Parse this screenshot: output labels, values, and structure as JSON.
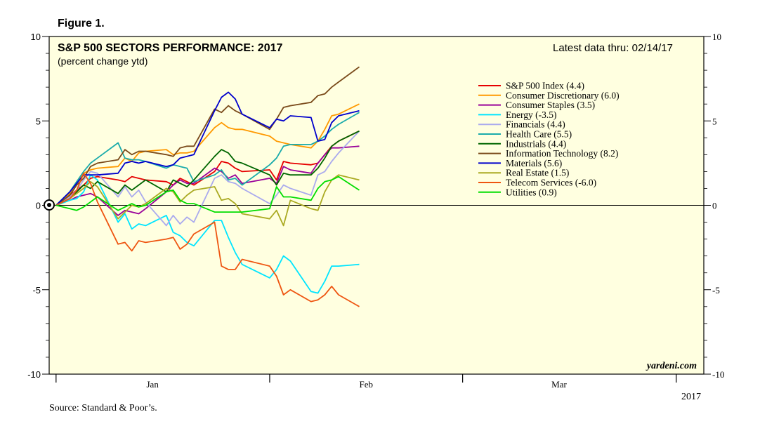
{
  "figure_label": "Figure 1.",
  "source": "Source: Standard & Poor’s.",
  "watermark": "yardeni.com",
  "chart_data": {
    "type": "line",
    "title": "S&P 500 SECTORS PERFORMANCE: 2017",
    "subtitle": "(percent change ytd)",
    "note": "Latest data thru: 02/14/17",
    "xlabel": "",
    "ylabel": "",
    "ylim": [
      -10,
      10
    ],
    "yticks": [
      -10,
      -5,
      0,
      5,
      10
    ],
    "ytick_labels_left": [
      "-10",
      "-5",
      "0",
      "5",
      "10"
    ],
    "ytick_labels_right": [
      "-10",
      "-5",
      "0",
      "5",
      "10"
    ],
    "xlim": [
      -1,
      94
    ],
    "xticks": [
      {
        "label": "Jan",
        "x": 14
      },
      {
        "label": "Feb",
        "x": 45
      },
      {
        "label": "Mar",
        "x": 73
      }
    ],
    "year_label": "2017",
    "background_color": "#ffffe0",
    "grid": false,
    "legend_position": "top-right",
    "x": [
      0,
      2,
      3,
      4,
      5,
      6,
      9,
      10,
      11,
      12,
      13,
      16,
      17,
      18,
      19,
      20,
      23,
      24,
      25,
      26,
      27,
      31,
      32,
      33,
      34,
      37,
      38,
      39,
      40,
      41,
      44
    ],
    "series": [
      {
        "name": "S&P 500 Index (4.4)",
        "color": "#e60000",
        "values": [
          0.0,
          0.6,
          0.9,
          1.2,
          1.6,
          1.7,
          1.5,
          1.4,
          1.7,
          1.6,
          1.5,
          1.4,
          1.2,
          1.6,
          1.4,
          1.2,
          2.0,
          2.6,
          2.5,
          2.2,
          2.0,
          2.1,
          1.5,
          2.6,
          2.5,
          2.4,
          2.5,
          3.0,
          3.5,
          3.8,
          4.4
        ]
      },
      {
        "name": "Consumer Discretionary (6.0)",
        "color": "#ff9900",
        "values": [
          0.0,
          0.7,
          1.4,
          1.9,
          2.1,
          2.2,
          2.3,
          2.8,
          2.6,
          3.1,
          3.2,
          3.3,
          3.0,
          3.1,
          3.1,
          3.2,
          4.6,
          4.9,
          4.6,
          4.5,
          4.5,
          4.1,
          3.8,
          3.7,
          3.6,
          3.4,
          3.8,
          4.5,
          5.3,
          5.4,
          6.0
        ]
      },
      {
        "name": "Consumer Staples (3.5)",
        "color": "#990099",
        "values": [
          0.0,
          0.3,
          0.5,
          0.6,
          0.7,
          0.5,
          -0.6,
          -0.3,
          -0.4,
          -0.5,
          -0.2,
          0.8,
          1.2,
          1.5,
          1.3,
          1.3,
          2.2,
          2.0,
          1.6,
          1.8,
          1.3,
          1.6,
          1.3,
          2.3,
          2.1,
          1.9,
          2.5,
          3.0,
          3.4,
          3.4,
          3.5
        ]
      },
      {
        "name": "Energy (-3.5)",
        "color": "#00e5ff",
        "values": [
          0.0,
          0.3,
          0.4,
          0.8,
          1.8,
          1.5,
          -1.0,
          -0.5,
          -1.4,
          -1.1,
          -1.2,
          -0.6,
          -1.6,
          -1.8,
          -2.2,
          -2.4,
          -0.9,
          -0.9,
          -1.9,
          -2.8,
          -3.5,
          -4.3,
          -3.8,
          -3.0,
          -3.3,
          -5.1,
          -5.2,
          -4.5,
          -3.6,
          -3.6,
          -3.5
        ]
      },
      {
        "name": "Financials (4.4)",
        "color": "#aaaaee",
        "values": [
          0.0,
          0.5,
          0.9,
          1.5,
          2.0,
          1.9,
          0.5,
          1.1,
          0.5,
          0.9,
          0.2,
          -1.2,
          -0.6,
          -1.1,
          -0.7,
          -1.0,
          1.6,
          1.8,
          1.4,
          1.3,
          1.0,
          0.1,
          0.6,
          1.2,
          1.0,
          0.6,
          1.8,
          2.0,
          2.6,
          3.1,
          4.4
        ]
      },
      {
        "name": "Health Care (5.5)",
        "color": "#1aabab",
        "values": [
          0.0,
          0.8,
          1.4,
          2.0,
          2.5,
          2.8,
          3.7,
          2.8,
          2.7,
          2.7,
          2.6,
          2.2,
          2.4,
          2.3,
          2.2,
          1.4,
          1.8,
          2.1,
          1.5,
          1.6,
          1.2,
          2.4,
          2.8,
          3.5,
          3.6,
          3.6,
          3.8,
          4.1,
          4.5,
          4.8,
          5.5
        ]
      },
      {
        "name": "Industrials (4.4)",
        "color": "#006600",
        "values": [
          0.0,
          0.4,
          0.8,
          1.2,
          1.0,
          1.4,
          0.7,
          1.2,
          0.9,
          1.2,
          1.5,
          0.8,
          1.5,
          1.3,
          1.1,
          1.5,
          2.9,
          3.3,
          3.1,
          2.6,
          2.5,
          1.8,
          1.2,
          1.9,
          1.8,
          1.8,
          2.2,
          2.8,
          3.5,
          3.8,
          4.4
        ]
      },
      {
        "name": "Information Technology (8.2)",
        "color": "#7a4a1a",
        "values": [
          0.0,
          0.6,
          1.2,
          1.6,
          2.3,
          2.5,
          2.7,
          3.3,
          3.0,
          3.2,
          3.2,
          3.0,
          2.9,
          3.4,
          3.5,
          3.5,
          5.7,
          5.5,
          5.9,
          5.6,
          5.4,
          4.5,
          5.1,
          5.8,
          5.9,
          6.1,
          6.5,
          6.6,
          7.0,
          7.3,
          8.2
        ]
      },
      {
        "name": "Materials (5.6)",
        "color": "#0000cc",
        "values": [
          0.0,
          0.8,
          1.3,
          1.8,
          1.8,
          1.8,
          1.9,
          2.5,
          2.6,
          2.5,
          2.6,
          2.3,
          2.4,
          2.8,
          2.9,
          3.0,
          5.6,
          6.4,
          6.7,
          6.3,
          5.4,
          4.6,
          5.1,
          5.0,
          5.3,
          5.2,
          3.8,
          3.9,
          4.9,
          5.3,
          5.6
        ]
      },
      {
        "name": "Real Estate (1.5)",
        "color": "#aaaa22",
        "values": [
          0.0,
          0.4,
          0.7,
          1.0,
          1.4,
          1.1,
          -0.8,
          -0.4,
          0.0,
          -0.1,
          0.1,
          1.0,
          0.8,
          0.2,
          0.6,
          0.9,
          1.1,
          0.3,
          0.4,
          0.1,
          -0.5,
          -0.8,
          -0.3,
          -1.2,
          0.3,
          -0.2,
          -0.3,
          0.8,
          1.5,
          1.8,
          1.5
        ]
      },
      {
        "name": "Telecom Services (-6.0)",
        "color": "#ee5511",
        "values": [
          0.0,
          0.4,
          0.9,
          1.9,
          1.3,
          0.2,
          -2.3,
          -2.2,
          -2.7,
          -2.1,
          -2.2,
          -2.0,
          -1.9,
          -2.6,
          -2.3,
          -1.7,
          -1.0,
          -3.6,
          -3.8,
          -3.8,
          -3.2,
          -3.6,
          -4.2,
          -5.3,
          -5.0,
          -5.7,
          -5.6,
          -5.3,
          -4.8,
          -5.3,
          -6.0
        ]
      },
      {
        "name": "Utilities (0.9)",
        "color": "#00dd00",
        "values": [
          0.0,
          -0.2,
          -0.3,
          -0.1,
          0.2,
          0.5,
          -0.3,
          -0.1,
          0.1,
          -0.1,
          0.0,
          0.8,
          0.9,
          0.3,
          0.1,
          0.1,
          -0.4,
          -0.4,
          -0.4,
          -0.4,
          -0.4,
          -0.2,
          1.1,
          0.5,
          0.5,
          0.3,
          1.0,
          1.4,
          1.5,
          1.7,
          0.9
        ]
      }
    ]
  }
}
